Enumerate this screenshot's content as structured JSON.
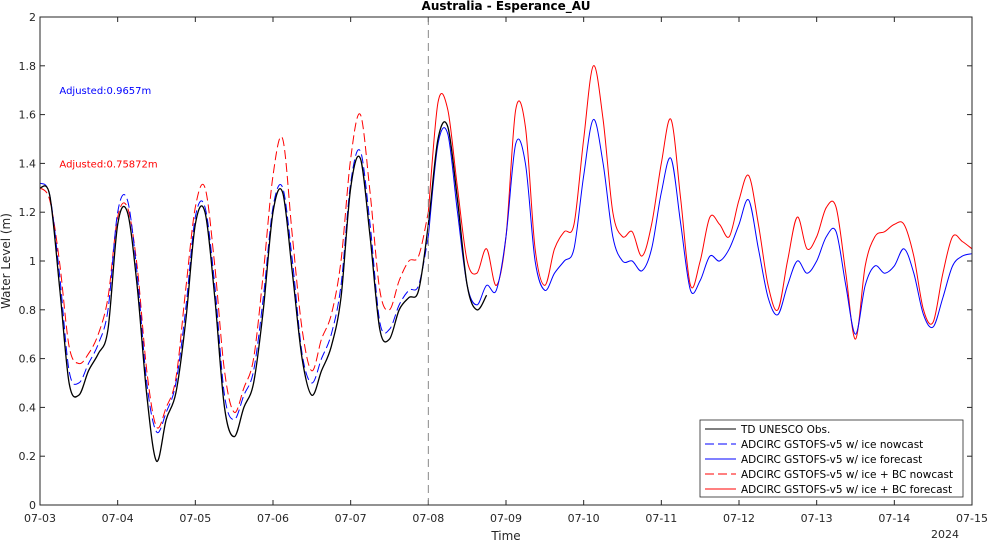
{
  "chart_data": {
    "type": "line",
    "title": "Australia - Esperance_AU",
    "xlabel": "Time",
    "ylabel": "Water Level (m)",
    "x_range": [
      "2024-07-03",
      "2024-07-15"
    ],
    "x_tick_labels": [
      "07-03",
      "07-04",
      "07-05",
      "07-06",
      "07-07",
      "07-08",
      "07-09",
      "07-10",
      "07-11",
      "07-12",
      "07-13",
      "07-14",
      "07-15"
    ],
    "x_year_label": "2024",
    "ylim": [
      0,
      2
    ],
    "y_tick_labels": [
      "0",
      "0.2",
      "0.4",
      "0.6",
      "0.8",
      "1",
      "1.2",
      "1.4",
      "1.6",
      "1.8",
      "2"
    ],
    "vline_x": "2024-07-08",
    "grid": false,
    "legend_position": "bottom-right",
    "annotations": [
      {
        "text": "Adjusted:0.9657m",
        "color": "#0000ff",
        "x": "2024-07-03 06:00",
        "y": 1.7
      },
      {
        "text": "Adjusted:0.75872m",
        "color": "#ff0000",
        "x": "2024-07-03 06:00",
        "y": 1.4
      }
    ],
    "series": [
      {
        "name": "TD UNESCO Obs.",
        "color": "#000000",
        "dash": "solid",
        "points": [
          [
            "07-03 00:00",
            1.3
          ],
          [
            "07-03 03:00",
            1.27
          ],
          [
            "07-03 06:00",
            0.9
          ],
          [
            "07-03 09:00",
            0.5
          ],
          [
            "07-03 12:00",
            0.45
          ],
          [
            "07-03 15:00",
            0.55
          ],
          [
            "07-03 18:00",
            0.62
          ],
          [
            "07-03 21:00",
            0.72
          ],
          [
            "07-04 00:00",
            1.15
          ],
          [
            "07-04 03:00",
            1.2
          ],
          [
            "07-04 06:00",
            0.9
          ],
          [
            "07-04 09:00",
            0.45
          ],
          [
            "07-04 12:00",
            0.18
          ],
          [
            "07-04 15:00",
            0.35
          ],
          [
            "07-04 18:00",
            0.46
          ],
          [
            "07-04 21:00",
            0.75
          ],
          [
            "07-05 00:00",
            1.15
          ],
          [
            "07-05 03:00",
            1.2
          ],
          [
            "07-05 06:00",
            0.85
          ],
          [
            "07-05 09:00",
            0.4
          ],
          [
            "07-05 12:00",
            0.28
          ],
          [
            "07-05 15:00",
            0.4
          ],
          [
            "07-05 18:00",
            0.5
          ],
          [
            "07-05 21:00",
            0.8
          ],
          [
            "07-06 00:00",
            1.2
          ],
          [
            "07-06 03:00",
            1.28
          ],
          [
            "07-06 06:00",
            0.95
          ],
          [
            "07-06 09:00",
            0.6
          ],
          [
            "07-06 12:00",
            0.45
          ],
          [
            "07-06 15:00",
            0.55
          ],
          [
            "07-06 18:00",
            0.65
          ],
          [
            "07-06 21:00",
            0.85
          ],
          [
            "07-07 00:00",
            1.3
          ],
          [
            "07-07 03:00",
            1.42
          ],
          [
            "07-07 06:00",
            1.1
          ],
          [
            "07-07 09:00",
            0.72
          ],
          [
            "07-07 12:00",
            0.68
          ],
          [
            "07-07 15:00",
            0.8
          ],
          [
            "07-07 18:00",
            0.85
          ],
          [
            "07-07 21:00",
            0.88
          ],
          [
            "07-08 00:00",
            1.15
          ],
          [
            "07-08 03:00",
            1.5
          ],
          [
            "07-08 06:00",
            1.55
          ],
          [
            "07-08 09:00",
            1.25
          ],
          [
            "07-08 12:00",
            0.9
          ],
          [
            "07-08 15:00",
            0.8
          ],
          [
            "07-08 18:00",
            0.86
          ]
        ]
      },
      {
        "name": "ADCIRC GSTOFS-v5  w/ ice nowcast",
        "color": "#0000ff",
        "dash": "dashed",
        "points": [
          [
            "07-03 00:00",
            1.32
          ],
          [
            "07-03 03:00",
            1.27
          ],
          [
            "07-03 06:00",
            0.95
          ],
          [
            "07-03 09:00",
            0.55
          ],
          [
            "07-03 12:00",
            0.5
          ],
          [
            "07-03 15:00",
            0.58
          ],
          [
            "07-03 18:00",
            0.66
          ],
          [
            "07-03 21:00",
            0.8
          ],
          [
            "07-04 00:00",
            1.2
          ],
          [
            "07-04 03:00",
            1.25
          ],
          [
            "07-04 06:00",
            0.95
          ],
          [
            "07-04 09:00",
            0.5
          ],
          [
            "07-04 12:00",
            0.3
          ],
          [
            "07-04 15:00",
            0.38
          ],
          [
            "07-04 18:00",
            0.5
          ],
          [
            "07-04 21:00",
            0.8
          ],
          [
            "07-05 00:00",
            1.18
          ],
          [
            "07-05 03:00",
            1.22
          ],
          [
            "07-05 06:00",
            0.9
          ],
          [
            "07-05 09:00",
            0.45
          ],
          [
            "07-05 12:00",
            0.35
          ],
          [
            "07-05 15:00",
            0.45
          ],
          [
            "07-05 18:00",
            0.55
          ],
          [
            "07-05 21:00",
            0.85
          ],
          [
            "07-06 00:00",
            1.22
          ],
          [
            "07-06 03:00",
            1.3
          ],
          [
            "07-06 06:00",
            1.0
          ],
          [
            "07-06 09:00",
            0.62
          ],
          [
            "07-06 12:00",
            0.5
          ],
          [
            "07-06 15:00",
            0.6
          ],
          [
            "07-06 18:00",
            0.7
          ],
          [
            "07-06 21:00",
            0.9
          ],
          [
            "07-07 00:00",
            1.32
          ],
          [
            "07-07 03:00",
            1.45
          ],
          [
            "07-07 06:00",
            1.15
          ],
          [
            "07-07 09:00",
            0.75
          ],
          [
            "07-07 12:00",
            0.72
          ],
          [
            "07-07 15:00",
            0.82
          ],
          [
            "07-07 18:00",
            0.88
          ],
          [
            "07-07 21:00",
            0.9
          ],
          [
            "07-08 00:00",
            1.1
          ]
        ]
      },
      {
        "name": "ADCIRC GSTOFS-v5  w/ ice forecast",
        "color": "#0000ff",
        "dash": "solid",
        "points": [
          [
            "07-08 00:00",
            1.1
          ],
          [
            "07-08 03:00",
            1.48
          ],
          [
            "07-08 06:00",
            1.52
          ],
          [
            "07-08 09:00",
            1.2
          ],
          [
            "07-08 12:00",
            0.9
          ],
          [
            "07-08 15:00",
            0.82
          ],
          [
            "07-08 18:00",
            0.9
          ],
          [
            "07-08 21:00",
            0.88
          ],
          [
            "07-09 00:00",
            1.1
          ],
          [
            "07-09 03:00",
            1.48
          ],
          [
            "07-09 06:00",
            1.4
          ],
          [
            "07-09 09:00",
            1.0
          ],
          [
            "07-09 12:00",
            0.88
          ],
          [
            "07-09 15:00",
            0.95
          ],
          [
            "07-09 18:00",
            1.0
          ],
          [
            "07-09 21:00",
            1.05
          ],
          [
            "07-10 00:00",
            1.35
          ],
          [
            "07-10 03:00",
            1.58
          ],
          [
            "07-10 06:00",
            1.4
          ],
          [
            "07-10 09:00",
            1.1
          ],
          [
            "07-10 12:00",
            1.0
          ],
          [
            "07-10 15:00",
            1.0
          ],
          [
            "07-10 18:00",
            0.96
          ],
          [
            "07-10 21:00",
            1.05
          ],
          [
            "07-11 00:00",
            1.28
          ],
          [
            "07-11 03:00",
            1.42
          ],
          [
            "07-11 06:00",
            1.15
          ],
          [
            "07-11 09:00",
            0.88
          ],
          [
            "07-11 12:00",
            0.92
          ],
          [
            "07-11 15:00",
            1.02
          ],
          [
            "07-11 18:00",
            1.0
          ],
          [
            "07-11 21:00",
            1.05
          ],
          [
            "07-12 00:00",
            1.15
          ],
          [
            "07-12 03:00",
            1.25
          ],
          [
            "07-12 06:00",
            1.05
          ],
          [
            "07-12 09:00",
            0.85
          ],
          [
            "07-12 12:00",
            0.78
          ],
          [
            "07-12 15:00",
            0.9
          ],
          [
            "07-12 18:00",
            1.0
          ],
          [
            "07-12 21:00",
            0.95
          ],
          [
            "07-13 00:00",
            1.0
          ],
          [
            "07-13 03:00",
            1.1
          ],
          [
            "07-13 06:00",
            1.12
          ],
          [
            "07-13 09:00",
            0.9
          ],
          [
            "07-13 12:00",
            0.7
          ],
          [
            "07-13 15:00",
            0.9
          ],
          [
            "07-13 18:00",
            0.98
          ],
          [
            "07-13 21:00",
            0.95
          ],
          [
            "07-14 00:00",
            0.98
          ],
          [
            "07-14 03:00",
            1.05
          ],
          [
            "07-14 06:00",
            0.95
          ],
          [
            "07-14 09:00",
            0.78
          ],
          [
            "07-14 12:00",
            0.73
          ],
          [
            "07-14 15:00",
            0.85
          ],
          [
            "07-14 18:00",
            0.98
          ],
          [
            "07-14 21:00",
            1.02
          ],
          [
            "07-15 00:00",
            1.03
          ]
        ]
      },
      {
        "name": "ADCIRC GSTOFS-v5  w/ ice + BC nowcast",
        "color": "#ff0000",
        "dash": "dashed",
        "points": [
          [
            "07-03 00:00",
            1.3
          ],
          [
            "07-03 03:00",
            1.25
          ],
          [
            "07-03 06:00",
            1.0
          ],
          [
            "07-03 09:00",
            0.65
          ],
          [
            "07-03 12:00",
            0.58
          ],
          [
            "07-03 15:00",
            0.62
          ],
          [
            "07-03 18:00",
            0.7
          ],
          [
            "07-03 21:00",
            0.85
          ],
          [
            "07-04 00:00",
            1.18
          ],
          [
            "07-04 03:00",
            1.22
          ],
          [
            "07-04 06:00",
            0.98
          ],
          [
            "07-04 09:00",
            0.55
          ],
          [
            "07-04 12:00",
            0.32
          ],
          [
            "07-04 15:00",
            0.4
          ],
          [
            "07-04 18:00",
            0.52
          ],
          [
            "07-04 21:00",
            0.88
          ],
          [
            "07-05 00:00",
            1.22
          ],
          [
            "07-05 03:00",
            1.3
          ],
          [
            "07-05 06:00",
            0.98
          ],
          [
            "07-05 09:00",
            0.55
          ],
          [
            "07-05 12:00",
            0.38
          ],
          [
            "07-05 15:00",
            0.48
          ],
          [
            "07-05 18:00",
            0.6
          ],
          [
            "07-05 21:00",
            0.95
          ],
          [
            "07-06 00:00",
            1.35
          ],
          [
            "07-06 03:00",
            1.5
          ],
          [
            "07-06 06:00",
            1.1
          ],
          [
            "07-06 09:00",
            0.72
          ],
          [
            "07-06 12:00",
            0.55
          ],
          [
            "07-06 15:00",
            0.68
          ],
          [
            "07-06 18:00",
            0.78
          ],
          [
            "07-06 21:00",
            1.0
          ],
          [
            "07-07 00:00",
            1.42
          ],
          [
            "07-07 03:00",
            1.6
          ],
          [
            "07-07 06:00",
            1.28
          ],
          [
            "07-07 09:00",
            0.88
          ],
          [
            "07-07 12:00",
            0.8
          ],
          [
            "07-07 15:00",
            0.92
          ],
          [
            "07-07 18:00",
            1.0
          ],
          [
            "07-07 21:00",
            1.02
          ],
          [
            "07-08 00:00",
            1.2
          ]
        ]
      },
      {
        "name": "ADCIRC GSTOFS-v5  w/ ice + BC forecast",
        "color": "#ff0000",
        "dash": "solid",
        "points": [
          [
            "07-08 00:00",
            1.2
          ],
          [
            "07-08 03:00",
            1.65
          ],
          [
            "07-08 06:00",
            1.62
          ],
          [
            "07-08 09:00",
            1.3
          ],
          [
            "07-08 12:00",
            1.0
          ],
          [
            "07-08 15:00",
            0.95
          ],
          [
            "07-08 18:00",
            1.05
          ],
          [
            "07-08 21:00",
            0.9
          ],
          [
            "07-09 00:00",
            1.1
          ],
          [
            "07-09 03:00",
            1.62
          ],
          [
            "07-09 06:00",
            1.55
          ],
          [
            "07-09 09:00",
            1.05
          ],
          [
            "07-09 12:00",
            0.9
          ],
          [
            "07-09 15:00",
            1.05
          ],
          [
            "07-09 18:00",
            1.12
          ],
          [
            "07-09 21:00",
            1.15
          ],
          [
            "07-10 00:00",
            1.5
          ],
          [
            "07-10 03:00",
            1.8
          ],
          [
            "07-10 06:00",
            1.58
          ],
          [
            "07-10 09:00",
            1.2
          ],
          [
            "07-10 12:00",
            1.1
          ],
          [
            "07-10 15:00",
            1.12
          ],
          [
            "07-10 18:00",
            1.02
          ],
          [
            "07-10 21:00",
            1.15
          ],
          [
            "07-11 00:00",
            1.4
          ],
          [
            "07-11 03:00",
            1.58
          ],
          [
            "07-11 06:00",
            1.25
          ],
          [
            "07-11 09:00",
            0.9
          ],
          [
            "07-11 12:00",
            1.0
          ],
          [
            "07-11 15:00",
            1.18
          ],
          [
            "07-11 18:00",
            1.15
          ],
          [
            "07-11 21:00",
            1.1
          ],
          [
            "07-12 00:00",
            1.25
          ],
          [
            "07-12 03:00",
            1.35
          ],
          [
            "07-12 06:00",
            1.15
          ],
          [
            "07-12 09:00",
            0.9
          ],
          [
            "07-12 12:00",
            0.8
          ],
          [
            "07-12 15:00",
            1.0
          ],
          [
            "07-12 18:00",
            1.18
          ],
          [
            "07-12 21:00",
            1.05
          ],
          [
            "07-13 00:00",
            1.1
          ],
          [
            "07-13 03:00",
            1.22
          ],
          [
            "07-13 06:00",
            1.22
          ],
          [
            "07-13 09:00",
            0.95
          ],
          [
            "07-13 12:00",
            0.68
          ],
          [
            "07-13 15:00",
            0.98
          ],
          [
            "07-13 18:00",
            1.1
          ],
          [
            "07-13 21:00",
            1.12
          ],
          [
            "07-14 00:00",
            1.15
          ],
          [
            "07-14 03:00",
            1.15
          ],
          [
            "07-14 06:00",
            1.02
          ],
          [
            "07-14 09:00",
            0.8
          ],
          [
            "07-14 12:00",
            0.75
          ],
          [
            "07-14 15:00",
            0.95
          ],
          [
            "07-14 18:00",
            1.1
          ],
          [
            "07-14 21:00",
            1.08
          ],
          [
            "07-15 00:00",
            1.05
          ]
        ]
      }
    ]
  }
}
